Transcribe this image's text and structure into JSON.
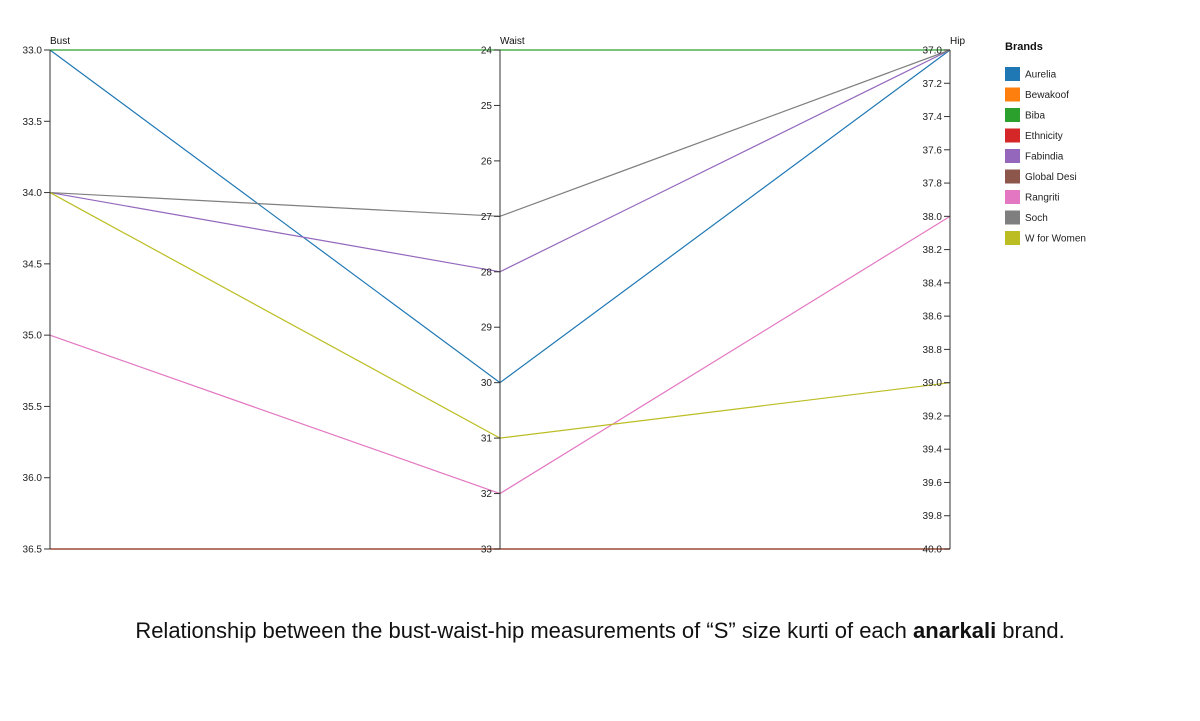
{
  "chart_data": {
    "type": "parallel_coordinates",
    "axes": [
      {
        "label": "Bust",
        "domain": [
          33.0,
          36.5
        ],
        "ticks": [
          "33.0",
          "33.5",
          "34.0",
          "34.5",
          "35.0",
          "35.5",
          "36.0",
          "36.5"
        ],
        "tick_values": [
          33.0,
          33.5,
          34.0,
          34.5,
          35.0,
          35.5,
          36.0,
          36.5
        ]
      },
      {
        "label": "Waist",
        "domain": [
          24,
          33
        ],
        "ticks": [
          "24",
          "25",
          "26",
          "27",
          "28",
          "29",
          "30",
          "31",
          "32",
          "33"
        ],
        "tick_values": [
          24,
          25,
          26,
          27,
          28,
          29,
          30,
          31,
          32,
          33
        ]
      },
      {
        "label": "Hip",
        "domain": [
          37.0,
          40.0
        ],
        "ticks": [
          "37.0",
          "37.2",
          "37.4",
          "37.6",
          "37.8",
          "38.0",
          "38.2",
          "38.4",
          "38.6",
          "38.8",
          "39.0",
          "39.2",
          "39.4",
          "39.6",
          "39.8",
          "40.0"
        ],
        "tick_values": [
          37.0,
          37.2,
          37.4,
          37.6,
          37.8,
          38.0,
          38.2,
          38.4,
          38.6,
          38.8,
          39.0,
          39.2,
          39.4,
          39.6,
          39.8,
          40.0
        ]
      }
    ],
    "legend_title": "Brands",
    "legend_position": "top-right",
    "series": [
      {
        "name": "Aurelia",
        "color": "#1f77b4",
        "values": [
          33.0,
          30,
          37.0
        ]
      },
      {
        "name": "Bewakoof",
        "color": "#ff7f0e",
        "values": [
          36.5,
          33,
          40.0
        ]
      },
      {
        "name": "Biba",
        "color": "#2ca02c",
        "values": [
          33.0,
          24,
          37.0
        ]
      },
      {
        "name": "Ethnicity",
        "color": "#d62728",
        "values": [
          36.5,
          33,
          40.0
        ]
      },
      {
        "name": "Fabindia",
        "color": "#9467bd",
        "values": [
          34.0,
          28,
          37.0
        ]
      },
      {
        "name": "Global Desi",
        "color": "#8c564b",
        "values": [
          36.5,
          33,
          40.0
        ]
      },
      {
        "name": "Rangriti",
        "color": "#e377c2",
        "values": [
          35.0,
          32,
          38.0
        ]
      },
      {
        "name": "Soch",
        "color": "#7f7f7f",
        "values": [
          34.0,
          27,
          37.0
        ]
      },
      {
        "name": "W for Women",
        "color": "#bcbd22",
        "values": [
          34.0,
          31,
          39.0
        ]
      }
    ]
  },
  "caption": {
    "before": "Relationship between the bust-waist-hip measurements of “S” size kurti of each ",
    "bold": "anarkali",
    "after": " brand."
  }
}
